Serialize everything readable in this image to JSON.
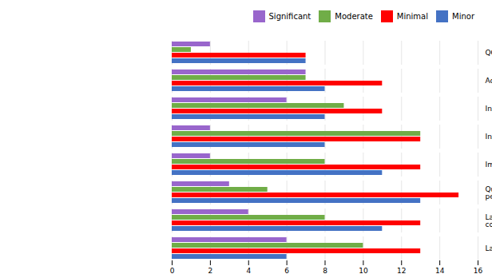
{
  "chart_data": {
    "type": "bar",
    "orientation": "horizontal",
    "categories": [
      "QC/QA not done on Force Account projects",
      "Acceptance of failed materials",
      "Insufficient inspection frequency or detail",
      "Insufficient  materials sampling frequency",
      "Improver or lacking materials certification",
      "Qualified/certified materials testing personnel not documented",
      "Lack of documentation on materials and construction",
      "Lack of, or not following QA procedures"
    ],
    "series": [
      {
        "name": "Significant",
        "color": "#9966cc",
        "values": [
          2,
          7,
          6,
          2,
          2,
          3,
          4,
          6
        ]
      },
      {
        "name": "Moderate",
        "color": "#70ad47",
        "values": [
          1,
          7,
          9,
          13,
          8,
          5,
          8,
          10
        ]
      },
      {
        "name": "Minimal",
        "color": "#ff0000",
        "values": [
          7,
          11,
          11,
          13,
          13,
          15,
          13,
          13
        ]
      },
      {
        "name": "Minor",
        "color": "#4472c4",
        "values": [
          7,
          8,
          8,
          8,
          11,
          13,
          11,
          6
        ]
      }
    ],
    "xlim": [
      0,
      16
    ],
    "xticks": [
      0,
      2,
      4,
      6,
      8,
      10,
      12,
      14,
      16
    ],
    "grid": true,
    "legend": "upper right"
  }
}
